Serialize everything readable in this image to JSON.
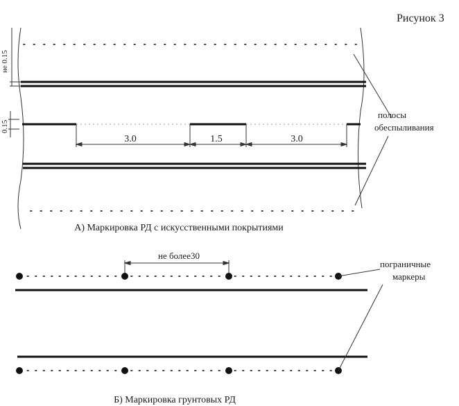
{
  "figure_label": "Рисунок 3",
  "part_a": {
    "caption": "А) Маркировка РД с искусственными покрытиями",
    "top_dimension": "не 0.15",
    "side_dimension": "0.15",
    "dash_dimensions": [
      "3.0",
      "1.5",
      "3.0"
    ],
    "callout": [
      "полосы",
      "обеспыливания"
    ]
  },
  "part_b": {
    "caption": "Б) Маркировка грунтовых РД",
    "spacing_label": "не более30",
    "callout": [
      "пограничные",
      "маркеры"
    ]
  }
}
